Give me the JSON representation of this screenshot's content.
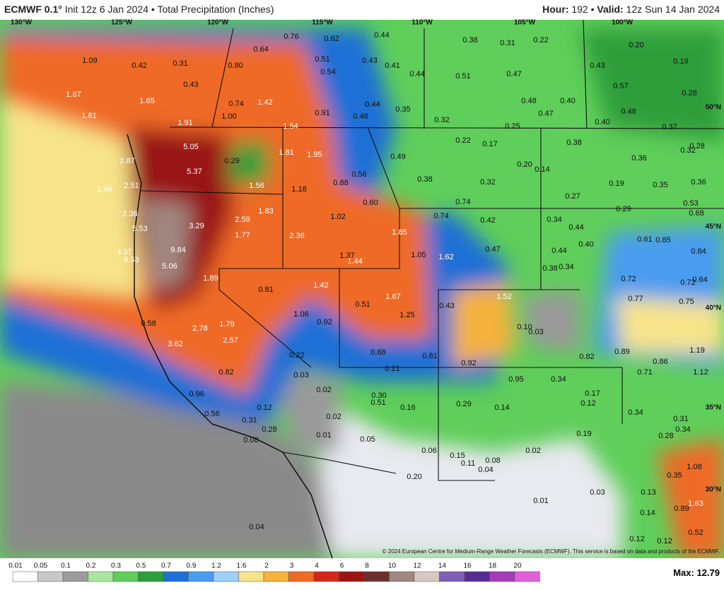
{
  "header": {
    "model": "ECMWF 0.1°",
    "init": "Init 12z 6 Jan 2024",
    "separator": "•",
    "field": "Total Precipitation (Inches)",
    "hour_label": "Hour:",
    "hour": "192",
    "valid_label": "Valid:",
    "valid": "12z Sun 14 Jan 2024"
  },
  "longitudes": [
    "130°W",
    "125°W",
    "120°W",
    "115°W",
    "110°W",
    "105°W",
    "100°W"
  ],
  "latitudes": [
    "50°N",
    "45°N",
    "40°N",
    "35°N",
    "30°N"
  ],
  "point_values": [
    "1.09",
    "0.42",
    "0.31",
    "0.80",
    "0.76",
    "0.62",
    "0.44",
    "0.38",
    "0.31",
    "0.22",
    "0.20",
    "0.19",
    "0.51",
    "0.54",
    "0.43",
    "0.41",
    "0.44",
    "0.51",
    "0.47",
    "0.43",
    "0.57",
    "0.28",
    "0.64",
    "0.43",
    "1.87",
    "1.65",
    "0.74",
    "1.42",
    "0.44",
    "0.35",
    "0.48",
    "0.40",
    "1.00",
    "0.91",
    "0.46",
    "0.32",
    "0.47",
    "0.48",
    "0.40",
    "0.25",
    "0.37",
    "1.81",
    "1.91",
    "1.54",
    "0.22",
    "0.17",
    "0.38",
    "0.28",
    "0.32",
    "5.05",
    "1.81",
    "1.95",
    "0.36",
    "2.87",
    "0.29",
    "0.49",
    "5.37",
    "0.20",
    "0.14",
    "0.56",
    "1.46",
    "2.51",
    "1.56",
    "1.18",
    "0.88",
    "0.38",
    "0.32",
    "0.19",
    "0.35",
    "0.36",
    "0.27",
    "0.60",
    "0.74",
    "0.29",
    "0.53",
    "0.68",
    "2.38",
    "1.83",
    "1.02",
    "0.74",
    "0.42",
    "0.34",
    "0.44",
    "5.53",
    "3.29",
    "2.59",
    "1.85",
    "2.36",
    "1.77",
    "0.61",
    "0.85",
    "9.84",
    "4.37",
    "9.53",
    "0.47",
    "0.40",
    "0.44",
    "0.84",
    "1.05",
    "1.62",
    "1.37",
    "1.44",
    "5.06",
    "0.38",
    "0.34",
    "1.89",
    "0.72",
    "0.81",
    "1.42",
    "0.72",
    "0.64",
    "1.52",
    "1.67",
    "0.51",
    "0.77",
    "0.75",
    "0.43",
    "1.06",
    "0.92",
    "1.25",
    "0.58",
    "2.78",
    "1.79",
    "0.10",
    "0.03",
    "2.57",
    "3.62",
    "0.22",
    "0.68",
    "0.81",
    "0.92",
    "0.82",
    "0.89",
    "0.86",
    "1.19",
    "0.71",
    "1.12",
    "0.21",
    "0.03",
    "0.82",
    "0.95",
    "0.34",
    "0.02",
    "0.96",
    "0.17",
    "0.30",
    "0.51",
    "0.12",
    "0.16",
    "0.29",
    "0.14",
    "0.12",
    "0.56",
    "0.34",
    "0.31",
    "0.02",
    "0.31",
    "0.34",
    "0.28",
    "0.28",
    "0.19",
    "0.01",
    "0.08",
    "0.05",
    "0.06",
    "0.02",
    "0.15",
    "0.08",
    "0.11",
    "0.04",
    "1.08",
    "0.35",
    "0.20",
    "0.03",
    "0.13",
    "0.01",
    "1.63",
    "0.89",
    "0.14",
    "0.04",
    "0.12",
    "0.12",
    "0.52"
  ],
  "copyright": "© 2024 European Centre for Medium-Range Weather Forecasts (ECMWF). This service is based on data and products of the ECMWF.",
  "colorbar": {
    "ticks": [
      "0.01",
      "0.05",
      "0.1",
      "0.2",
      "0.3",
      "0.5",
      "0.7",
      "0.9",
      "1.2",
      "1.6",
      "2",
      "3",
      "4",
      "6",
      "8",
      "10",
      "12",
      "14",
      "16",
      "18",
      "20"
    ],
    "colors": [
      "#ffffff",
      "#c8c8c8",
      "#9a9a9a",
      "#a8e6a0",
      "#5fce5a",
      "#2e9e3a",
      "#1f6fd6",
      "#4a9cf0",
      "#9fd0f7",
      "#f7e48a",
      "#f5b23c",
      "#ef6a26",
      "#d3271c",
      "#9a1512",
      "#6e2f2a",
      "#a08780",
      "#d8c8c4",
      "#7f5fb8",
      "#5a2c91",
      "#a43bb8",
      "#e060d8"
    ],
    "max_label": "Max:",
    "max": 12.79
  }
}
